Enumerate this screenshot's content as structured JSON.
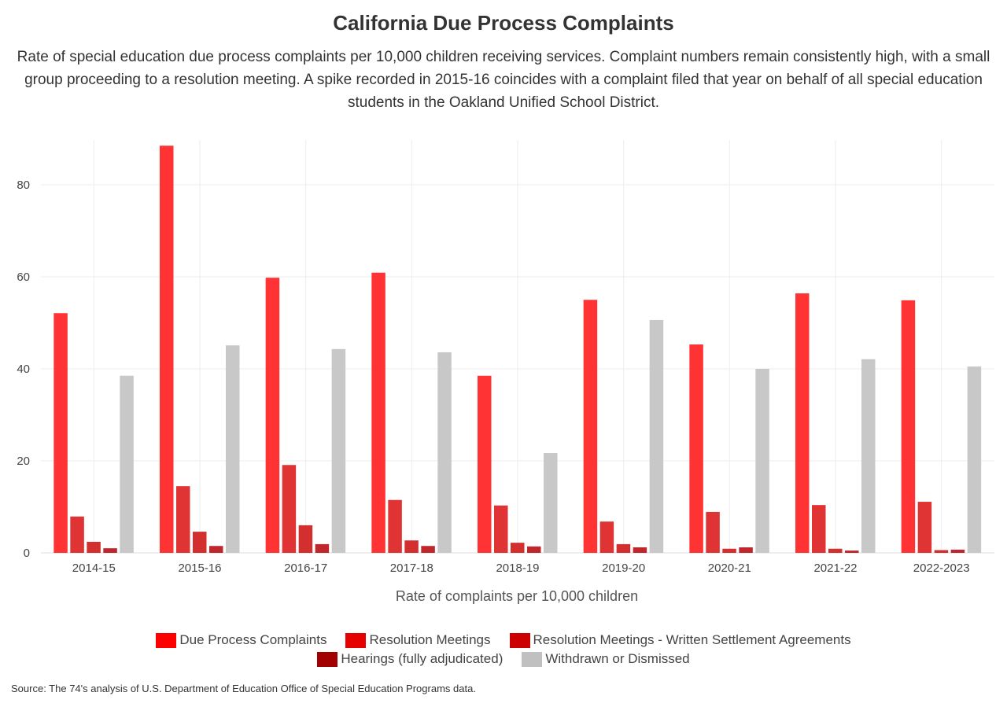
{
  "chart_data": {
    "type": "bar",
    "title": "California Due Process Complaints",
    "subtitle": "Rate of special education due process complaints per 10,000 children receiving services. Complaint numbers remain consistently high, with a small group proceeding to a resolution meeting. A spike recorded in 2015-16 coincides with a complaint filed that year on behalf of all special education students in the Oakland Unified School District.",
    "xlabel": "Rate of complaints per 10,000 children",
    "ylabel": "",
    "ylim": [
      0,
      90
    ],
    "yticks": [
      0,
      20,
      40,
      60,
      80
    ],
    "grid": true,
    "legend_position": "bottom",
    "categories": [
      "2014-15",
      "2015-16",
      "2016-17",
      "2017-18",
      "2018-19",
      "2019-20",
      "2020-21",
      "2021-22",
      "2022-2023"
    ],
    "series": [
      {
        "name": "Due Process Complaints",
        "color": "#ff3333",
        "legend_color": "#ff0000",
        "values": [
          52.1,
          88.5,
          59.8,
          60.9,
          38.5,
          55.0,
          45.3,
          56.4,
          54.9
        ]
      },
      {
        "name": "Resolution Meetings",
        "color": "#e03333",
        "legend_color": "#e60000",
        "values": [
          7.9,
          14.5,
          19.1,
          11.5,
          10.3,
          6.8,
          8.9,
          10.4,
          11.1
        ]
      },
      {
        "name": "Resolution Meetings - Written Settlement Agreements",
        "color": "#d32f2f",
        "legend_color": "#cc0000",
        "values": [
          2.4,
          4.6,
          6.0,
          2.7,
          2.2,
          1.9,
          0.9,
          0.9,
          0.6
        ]
      },
      {
        "name": "Hearings (fully adjudicated)",
        "color": "#c0272d",
        "legend_color": "#a30000",
        "values": [
          1.0,
          1.5,
          1.9,
          1.5,
          1.4,
          1.2,
          1.2,
          0.5,
          0.7
        ]
      },
      {
        "name": "Withdrawn or Dismissed",
        "color": "#c8c8c8",
        "legend_color": "#c0c0c0",
        "values": [
          38.5,
          45.1,
          44.3,
          43.6,
          21.7,
          50.6,
          40.0,
          42.1,
          40.5
        ]
      }
    ]
  },
  "source": "Source: The 74's analysis of U.S. Department of Education Office of Special Education Programs data."
}
